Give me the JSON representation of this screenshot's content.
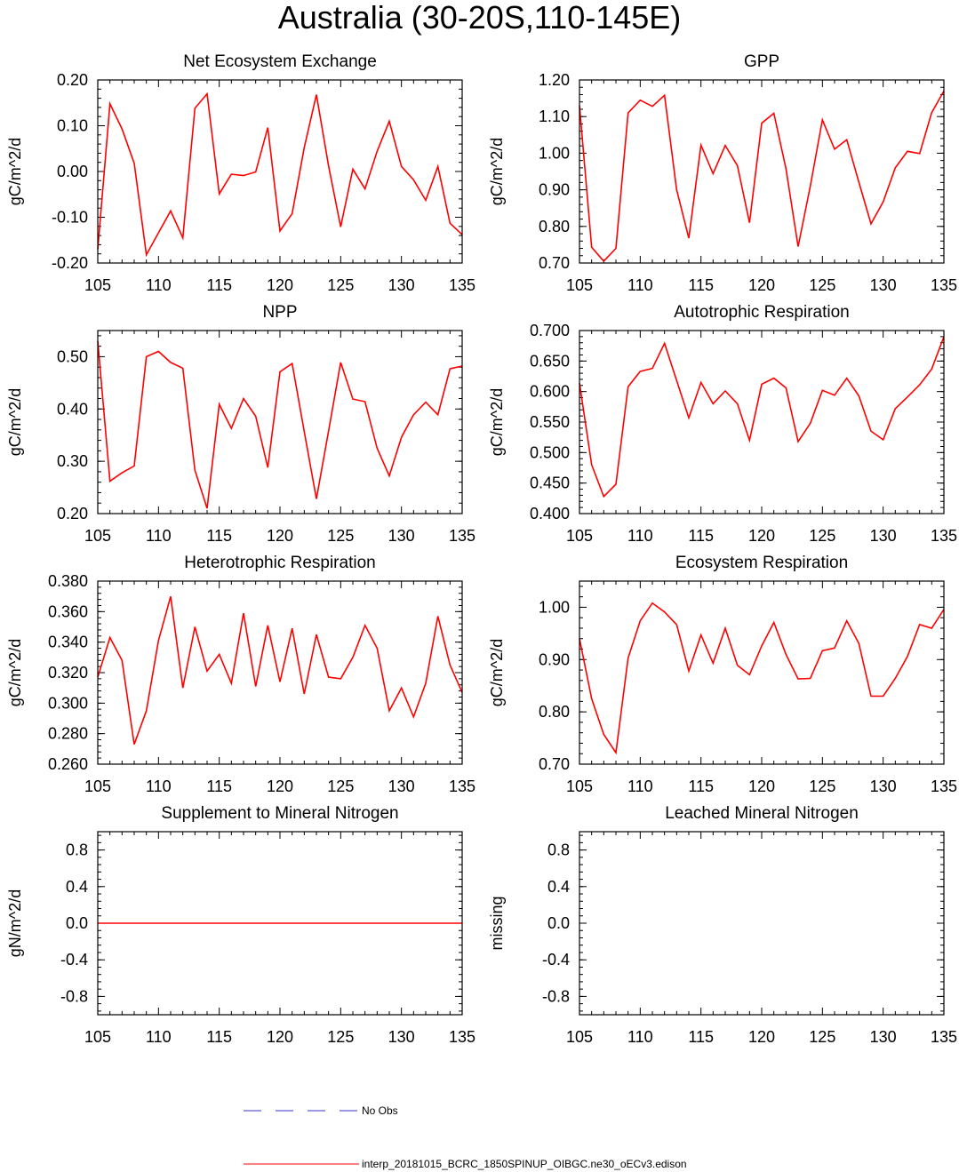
{
  "title": "Australia (30-20S,110-145E)",
  "colors": {
    "model": "#ff0000",
    "obs": "#3333cc",
    "axis": "#000000"
  },
  "legend": {
    "obs_label": "No Obs",
    "model_label": "interp_20181015_BCRC_1850SPINUP_OIBGC.ne30_oECv3.edison"
  },
  "chart_data": [
    {
      "type": "line",
      "title": "Net Ecosystem Exchange",
      "ylabel": "gC/m^2/d",
      "xlim": [
        105,
        135
      ],
      "ylim": [
        -0.2,
        0.2
      ],
      "xticks": [
        105,
        110,
        115,
        120,
        125,
        130,
        135
      ],
      "xtick_labels": [
        "105",
        "110",
        "115",
        "120",
        "125",
        "130",
        "135"
      ],
      "yticks": [
        -0.2,
        -0.1,
        0.0,
        0.1,
        0.2
      ],
      "ytick_labels": [
        "-0.20",
        "-0.10",
        "0.00",
        "0.10",
        "0.20"
      ],
      "x": [
        105,
        106,
        107,
        108,
        109,
        110,
        111,
        112,
        113,
        114,
        115,
        116,
        117,
        118,
        119,
        120,
        121,
        122,
        123,
        124,
        125,
        126,
        127,
        128,
        129,
        130,
        131,
        132,
        133,
        134,
        135
      ],
      "values": [
        -0.17,
        0.148,
        0.093,
        0.018,
        -0.182,
        -0.134,
        -0.086,
        -0.145,
        0.138,
        0.17,
        -0.049,
        -0.006,
        -0.009,
        -0.001,
        0.096,
        -0.13,
        -0.092,
        0.052,
        0.168,
        0.012,
        -0.121,
        0.005,
        -0.038,
        0.044,
        0.11,
        0.011,
        -0.018,
        -0.063,
        0.011,
        -0.113,
        -0.138
      ]
    },
    {
      "type": "line",
      "title": "GPP",
      "ylabel": "gC/m^2/d",
      "xlim": [
        105,
        135
      ],
      "ylim": [
        0.7,
        1.2
      ],
      "xticks": [
        105,
        110,
        115,
        120,
        125,
        130,
        135
      ],
      "xtick_labels": [
        "105",
        "110",
        "115",
        "120",
        "125",
        "130",
        "135"
      ],
      "yticks": [
        0.7,
        0.8,
        0.9,
        1.0,
        1.1,
        1.2
      ],
      "ytick_labels": [
        "0.70",
        "0.80",
        "0.90",
        "1.00",
        "1.10",
        "1.20"
      ],
      "x": [
        105,
        106,
        107,
        108,
        109,
        110,
        111,
        112,
        113,
        114,
        115,
        116,
        117,
        118,
        119,
        120,
        121,
        122,
        123,
        124,
        125,
        126,
        127,
        128,
        129,
        130,
        131,
        132,
        133,
        134,
        135
      ],
      "values": [
        1.13,
        0.743,
        0.705,
        0.74,
        1.11,
        1.145,
        1.128,
        1.158,
        0.9,
        0.768,
        1.022,
        0.944,
        1.021,
        0.966,
        0.81,
        1.082,
        1.109,
        0.958,
        0.745,
        0.91,
        1.091,
        1.011,
        1.037,
        0.921,
        0.807,
        0.867,
        0.96,
        1.005,
        0.999,
        1.111,
        1.17
      ]
    },
    {
      "type": "line",
      "title": "NPP",
      "ylabel": "gC/m^2/d",
      "xlim": [
        105,
        135
      ],
      "ylim": [
        0.2,
        0.55
      ],
      "xticks": [
        105,
        110,
        115,
        120,
        125,
        130,
        135
      ],
      "xtick_labels": [
        "105",
        "110",
        "115",
        "120",
        "125",
        "130",
        "135"
      ],
      "yticks": [
        0.2,
        0.3,
        0.4,
        0.5
      ],
      "ytick_labels": [
        "0.20",
        "0.30",
        "0.40",
        "0.50"
      ],
      "x": [
        105,
        106,
        107,
        108,
        109,
        110,
        111,
        112,
        113,
        114,
        115,
        116,
        117,
        118,
        119,
        120,
        121,
        122,
        123,
        124,
        125,
        126,
        127,
        128,
        129,
        130,
        131,
        132,
        133,
        134,
        135
      ],
      "values": [
        0.53,
        0.262,
        0.278,
        0.291,
        0.5,
        0.51,
        0.489,
        0.478,
        0.283,
        0.21,
        0.409,
        0.363,
        0.42,
        0.386,
        0.288,
        0.471,
        0.487,
        0.357,
        0.228,
        0.358,
        0.489,
        0.419,
        0.414,
        0.325,
        0.272,
        0.346,
        0.389,
        0.413,
        0.389,
        0.477,
        0.482
      ]
    },
    {
      "type": "line",
      "title": "Autotrophic Respiration",
      "ylabel": "gC/m^2/d",
      "xlim": [
        105,
        135
      ],
      "ylim": [
        0.4,
        0.7
      ],
      "xticks": [
        105,
        110,
        115,
        120,
        125,
        130,
        135
      ],
      "xtick_labels": [
        "105",
        "110",
        "115",
        "120",
        "125",
        "130",
        "135"
      ],
      "yticks": [
        0.4,
        0.45,
        0.5,
        0.55,
        0.6,
        0.65,
        0.7
      ],
      "ytick_labels": [
        "0.400",
        "0.450",
        "0.500",
        "0.550",
        "0.600",
        "0.650",
        "0.700"
      ],
      "x": [
        105,
        106,
        107,
        108,
        109,
        110,
        111,
        112,
        113,
        114,
        115,
        116,
        117,
        118,
        119,
        120,
        121,
        122,
        123,
        124,
        125,
        126,
        127,
        128,
        129,
        130,
        131,
        132,
        133,
        134,
        135
      ],
      "values": [
        0.614,
        0.48,
        0.428,
        0.448,
        0.608,
        0.633,
        0.638,
        0.679,
        0.618,
        0.557,
        0.615,
        0.58,
        0.601,
        0.58,
        0.52,
        0.612,
        0.622,
        0.606,
        0.518,
        0.548,
        0.602,
        0.594,
        0.622,
        0.593,
        0.535,
        0.521,
        0.572,
        0.591,
        0.611,
        0.637,
        0.69
      ]
    },
    {
      "type": "line",
      "title": "Heterotrophic Respiration",
      "ylabel": "gC/m^2/d",
      "xlim": [
        105,
        135
      ],
      "ylim": [
        0.26,
        0.38
      ],
      "xticks": [
        105,
        110,
        115,
        120,
        125,
        130,
        135
      ],
      "xtick_labels": [
        "105",
        "110",
        "115",
        "120",
        "125",
        "130",
        "135"
      ],
      "yticks": [
        0.26,
        0.28,
        0.3,
        0.32,
        0.34,
        0.36,
        0.38
      ],
      "ytick_labels": [
        "0.260",
        "0.280",
        "0.300",
        "0.320",
        "0.340",
        "0.360",
        "0.380"
      ],
      "x": [
        105,
        106,
        107,
        108,
        109,
        110,
        111,
        112,
        113,
        114,
        115,
        116,
        117,
        118,
        119,
        120,
        121,
        122,
        123,
        124,
        125,
        126,
        127,
        128,
        129,
        130,
        131,
        132,
        133,
        134,
        135
      ],
      "values": [
        0.317,
        0.343,
        0.328,
        0.273,
        0.295,
        0.341,
        0.37,
        0.31,
        0.35,
        0.321,
        0.332,
        0.313,
        0.359,
        0.311,
        0.351,
        0.314,
        0.349,
        0.306,
        0.345,
        0.317,
        0.316,
        0.33,
        0.351,
        0.336,
        0.295,
        0.31,
        0.291,
        0.313,
        0.357,
        0.325,
        0.307
      ]
    },
    {
      "type": "line",
      "title": "Ecosystem Respiration",
      "ylabel": "gC/m^2/d",
      "xlim": [
        105,
        135
      ],
      "ylim": [
        0.7,
        1.05
      ],
      "xticks": [
        105,
        110,
        115,
        120,
        125,
        130,
        135
      ],
      "xtick_labels": [
        "105",
        "110",
        "115",
        "120",
        "125",
        "130",
        "135"
      ],
      "yticks": [
        0.7,
        0.8,
        0.9,
        1.0
      ],
      "ytick_labels": [
        "0.70",
        "0.80",
        "0.90",
        "1.00"
      ],
      "x": [
        105,
        106,
        107,
        108,
        109,
        110,
        111,
        112,
        113,
        114,
        115,
        116,
        117,
        118,
        119,
        120,
        121,
        122,
        123,
        124,
        125,
        126,
        127,
        128,
        129,
        130,
        131,
        132,
        133,
        134,
        135
      ],
      "values": [
        0.94,
        0.825,
        0.757,
        0.722,
        0.903,
        0.974,
        1.008,
        0.991,
        0.967,
        0.878,
        0.947,
        0.893,
        0.96,
        0.889,
        0.871,
        0.926,
        0.971,
        0.91,
        0.863,
        0.864,
        0.917,
        0.922,
        0.974,
        0.931,
        0.83,
        0.83,
        0.864,
        0.906,
        0.967,
        0.96,
        0.996
      ]
    },
    {
      "type": "line",
      "title": "Supplement to Mineral Nitrogen",
      "ylabel": "gN/m^2/d",
      "xlim": [
        105,
        135
      ],
      "ylim": [
        -1,
        1
      ],
      "xticks": [
        105,
        110,
        115,
        120,
        125,
        130,
        135
      ],
      "xtick_labels": [
        "105",
        "110",
        "115",
        "120",
        "125",
        "130",
        "135"
      ],
      "yticks": [
        -0.8,
        -0.4,
        0.0,
        0.4,
        0.8
      ],
      "ytick_labels": [
        "-0.8",
        "-0.4",
        "0.0",
        "0.4",
        "0.8"
      ],
      "x": [
        105,
        106,
        107,
        108,
        109,
        110,
        111,
        112,
        113,
        114,
        115,
        116,
        117,
        118,
        119,
        120,
        121,
        122,
        123,
        124,
        125,
        126,
        127,
        128,
        129,
        130,
        131,
        132,
        133,
        134,
        135
      ],
      "values": [
        0,
        0,
        0,
        0,
        0,
        0,
        0,
        0,
        0,
        0,
        0,
        0,
        0,
        0,
        0,
        0,
        0,
        0,
        0,
        0,
        0,
        0,
        0,
        0,
        0,
        0,
        0,
        0,
        0,
        0,
        0
      ]
    },
    {
      "type": "line",
      "title": "Leached Mineral Nitrogen",
      "ylabel": "missing",
      "xlim": [
        105,
        135
      ],
      "ylim": [
        -1,
        1
      ],
      "xticks": [
        105,
        110,
        115,
        120,
        125,
        130,
        135
      ],
      "xtick_labels": [
        "105",
        "110",
        "115",
        "120",
        "125",
        "130",
        "135"
      ],
      "yticks": [
        -0.8,
        -0.4,
        0.0,
        0.4,
        0.8
      ],
      "ytick_labels": [
        "-0.8",
        "-0.4",
        "0.0",
        "0.4",
        "0.8"
      ],
      "x": [],
      "values": []
    }
  ]
}
